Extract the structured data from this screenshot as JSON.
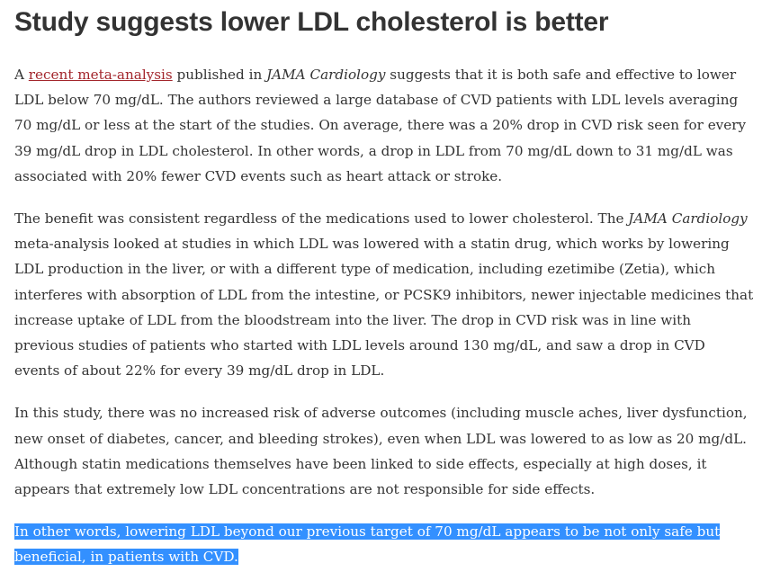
{
  "article": {
    "title": "Study suggests lower LDL cholesterol is better",
    "p1": {
      "t1": "A ",
      "link": "recent meta-analysis",
      "t2": " published in ",
      "em1": "JAMA Cardiology",
      "t3": " suggests that it is both safe and effective to lower LDL below 70 mg/dL. The authors reviewed a large database of CVD patients with LDL levels averaging 70 mg/dL or less at the start of the studies. On average, there was a 20% drop in CVD risk seen for every 39 mg/dL drop in LDL cholesterol. In other words, a drop in LDL from 70 mg/dL down to 31 mg/dL was associated with 20% fewer CVD events such as heart attack or stroke."
    },
    "p2": {
      "t1": "The benefit was consistent regardless of the medications used to lower cholesterol. The ",
      "em1": "JAMA Cardiology",
      "t2": " meta-analysis looked at studies in which LDL was lowered with a statin drug, which works by lowering LDL production in the liver, or with a different type of medication, including ezetimibe (Zetia), which interferes with absorption of LDL from the intestine, or PCSK9 inhibitors, newer injectable medicines that increase uptake of LDL from the bloodstream into the liver. The drop in CVD risk was in line with previous studies of patients who started with LDL levels around 130 mg/dL, and saw a drop in CVD events of about 22% for every 39 mg/dL drop in LDL."
    },
    "p3": "In this study, there was no increased risk of adverse outcomes (including muscle aches, liver dysfunction, new onset of diabetes, cancer, and bleeding strokes), even when LDL was lowered to as low as 20 mg/dL. Although statin medications themselves have been linked to side effects, especially at high doses, it appears that extremely low LDL concentrations are not responsible for side effects.",
    "p4": "In other words, lowering LDL beyond our previous target of 70 mg/dL appears to be not only safe but beneficial, in patients with CVD."
  },
  "colors": {
    "text": "#333333",
    "link": "#a3262c",
    "selection": "#3390ff"
  }
}
